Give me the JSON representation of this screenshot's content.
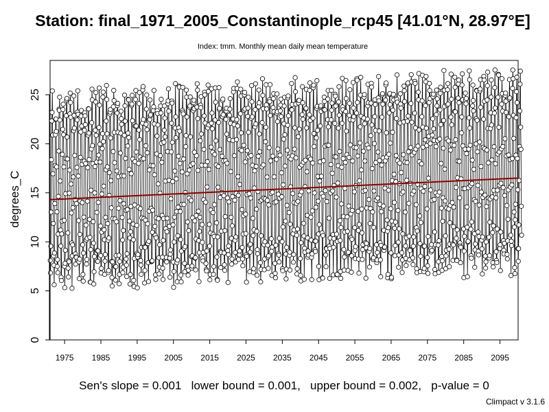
{
  "chart_data": {
    "type": "line",
    "title": "Station: final_1971_2005_Constantinople_rcp45 [41.01°N, 28.97°E]",
    "subtitle": "Index: tmm. Monthly mean daily mean temperature",
    "ylabel": "degrees_C",
    "xlabel": "",
    "xlim": [
      1971,
      2100
    ],
    "ylim": [
      0,
      28.5
    ],
    "x_ticks": [
      "1975",
      "1985",
      "1995",
      "2005",
      "2015",
      "2025",
      "2035",
      "2045",
      "2055",
      "2065",
      "2075",
      "2085",
      "2095"
    ],
    "x_tick_values": [
      1975,
      1985,
      1995,
      2005,
      2015,
      2025,
      2035,
      2045,
      2055,
      2065,
      2075,
      2085,
      2095
    ],
    "y_ticks": [
      "0",
      "5",
      "10",
      "15",
      "20",
      "25"
    ],
    "y_tick_values": [
      0,
      5,
      10,
      15,
      20,
      25
    ],
    "series": [
      {
        "kind": "monthly",
        "start": "1971-01",
        "end": "2100-12",
        "summer_peak_range": [
          23.5,
          28.3
        ],
        "winter_trough_range": [
          0.9,
          10.0
        ],
        "min_value": 0.9,
        "max_value": 28.3,
        "style": "line-with-open-circles",
        "color": "#000000"
      }
    ],
    "trend": {
      "x": [
        1971,
        2100
      ],
      "y": [
        14.3,
        16.5
      ],
      "color": "#8b0000"
    },
    "stats_text": "Sen's slope = 0.001   lower bound = 0.001,   upper bound = 0.002,   p-value = 0",
    "credit": "Climpact v 3.1.6"
  }
}
